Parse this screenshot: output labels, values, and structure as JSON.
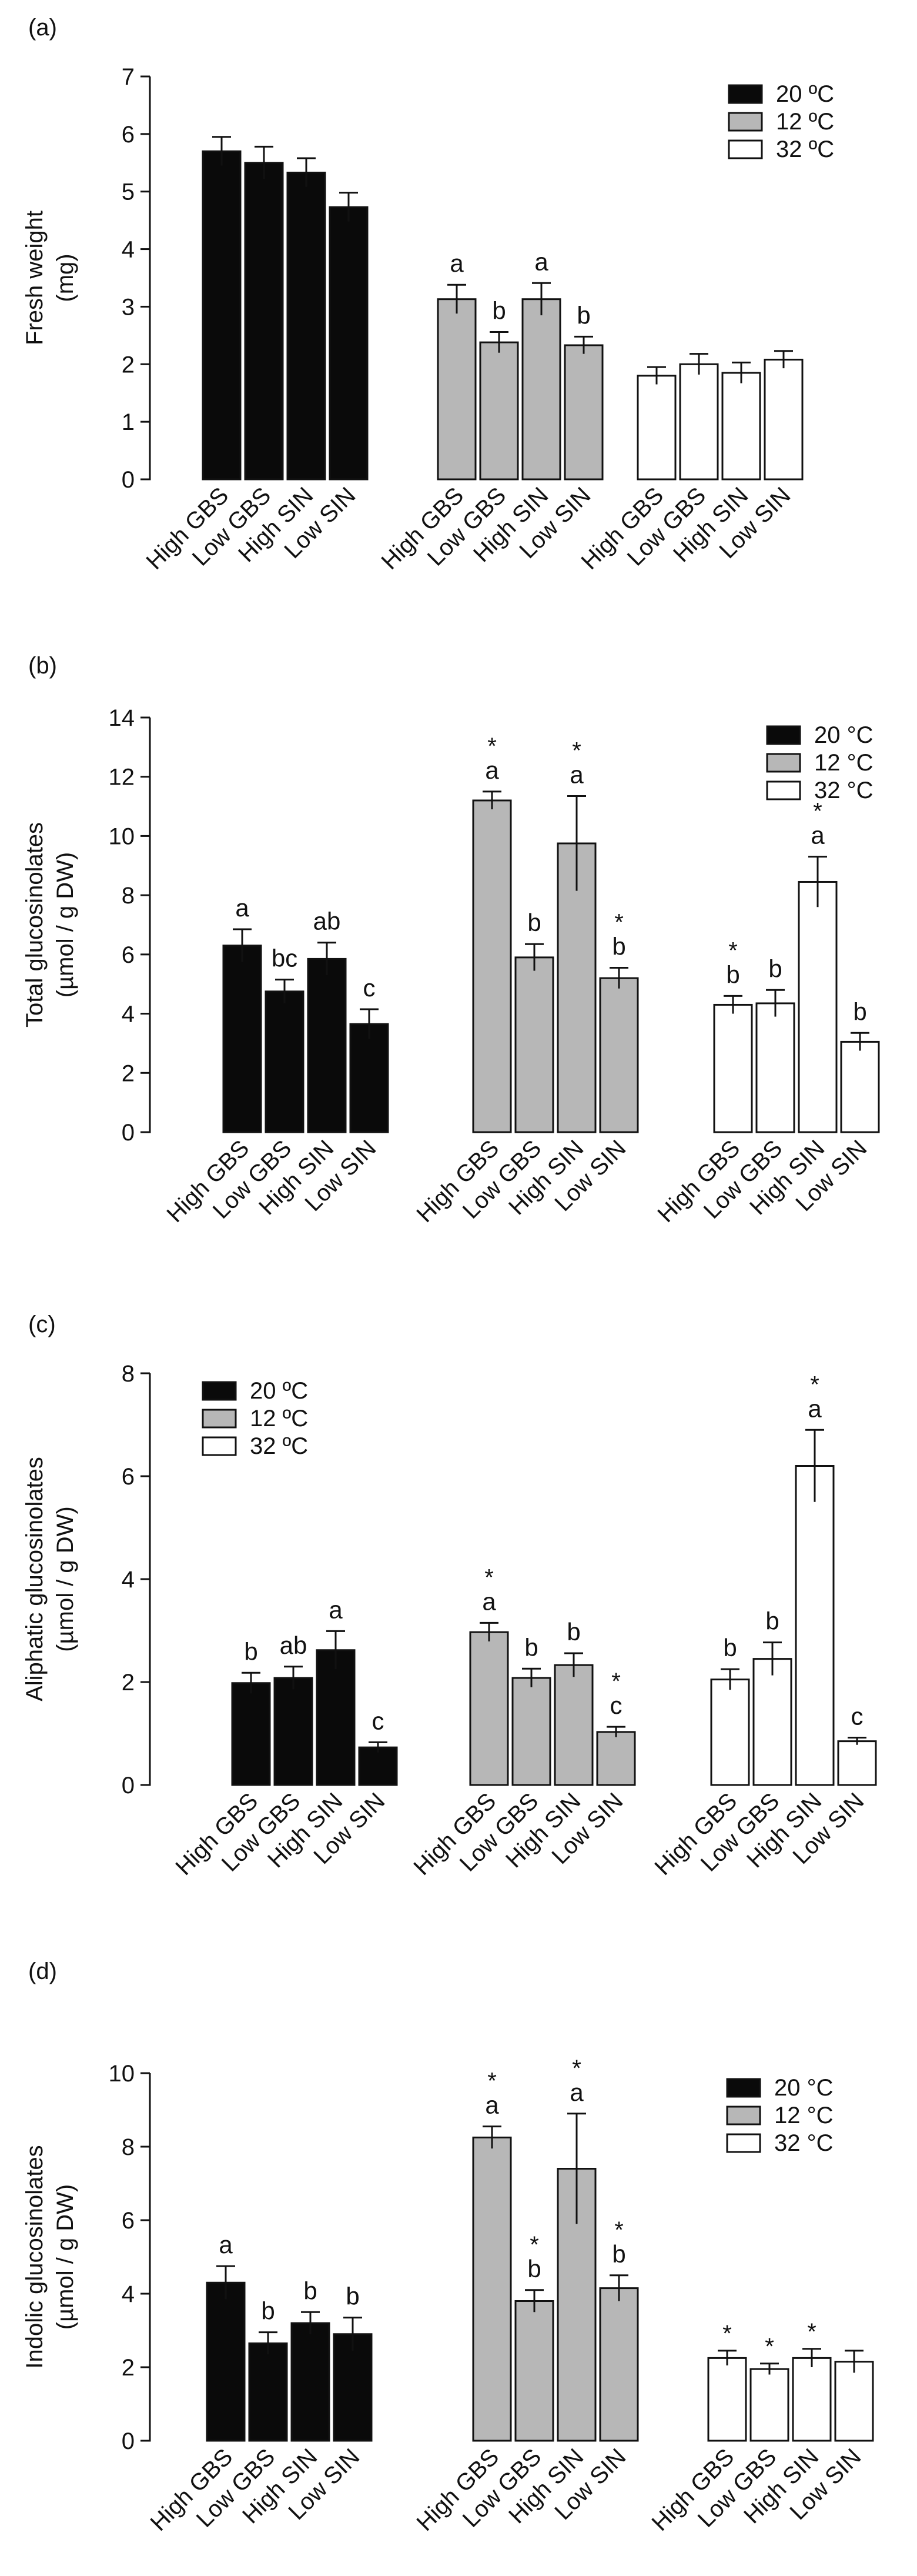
{
  "colors": {
    "20": "#0a0a0a",
    "12": "#b7b7b7",
    "32": "#ffffff"
  },
  "chart_data": [
    {
      "panel": "(a)",
      "type": "bar",
      "ylabel": "Fresh weight (mg)",
      "ylim": [
        0,
        7
      ],
      "yticks": [
        "0",
        "1",
        "2",
        "3",
        "4",
        "5",
        "6",
        "7"
      ],
      "legend": [
        "20 ºC",
        "12 ºC",
        "32 ºC"
      ],
      "legend_position": "top-right",
      "categories": [
        "High GBS",
        "Low GBS",
        "High SIN",
        "Low SIN"
      ],
      "groups": [
        {
          "name": "20 ºC",
          "values": [
            5.7,
            5.5,
            5.33,
            4.73
          ],
          "errors": [
            0.25,
            0.28,
            0.25,
            0.25
          ],
          "letters": [
            "",
            "",
            "",
            ""
          ],
          "stars": [
            "",
            "",
            "",
            ""
          ]
        },
        {
          "name": "12 ºC",
          "values": [
            3.13,
            2.38,
            3.13,
            2.33
          ],
          "errors": [
            0.25,
            0.18,
            0.28,
            0.15
          ],
          "letters": [
            "a",
            "b",
            "a",
            "b"
          ],
          "stars": [
            "",
            "",
            "",
            ""
          ]
        },
        {
          "name": "32 ºC",
          "values": [
            1.8,
            2.0,
            1.85,
            2.08
          ],
          "errors": [
            0.15,
            0.18,
            0.18,
            0.15
          ],
          "letters": [
            "",
            "",
            "",
            ""
          ],
          "stars": [
            "",
            "",
            "",
            ""
          ]
        }
      ]
    },
    {
      "panel": "(b)",
      "type": "bar",
      "ylabel": "Total glucosinolates (µmol / g DW)",
      "ylim": [
        0,
        14
      ],
      "yticks": [
        "0",
        "2",
        "4",
        "6",
        "8",
        "10",
        "12",
        "14"
      ],
      "legend": [
        "20 °C",
        "12 °C",
        "32 °C"
      ],
      "legend_position": "top-right",
      "categories": [
        "High GBS",
        "Low GBS",
        "High SIN",
        "Low SIN"
      ],
      "groups": [
        {
          "name": "20 °C",
          "values": [
            6.3,
            4.75,
            5.85,
            3.65
          ],
          "errors": [
            0.55,
            0.4,
            0.55,
            0.5
          ],
          "letters": [
            "a",
            "bc",
            "ab",
            "c"
          ],
          "stars": [
            "",
            "",
            "",
            ""
          ]
        },
        {
          "name": "12 °C",
          "values": [
            11.2,
            5.9,
            9.75,
            5.2
          ],
          "errors": [
            0.3,
            0.45,
            1.6,
            0.35
          ],
          "letters": [
            "a",
            "b",
            "a",
            "b"
          ],
          "stars": [
            "*",
            "",
            "*",
            "*"
          ]
        },
        {
          "name": "32 °C",
          "values": [
            4.3,
            4.35,
            8.45,
            3.05
          ],
          "errors": [
            0.3,
            0.45,
            0.85,
            0.3
          ],
          "letters": [
            "b",
            "b",
            "a",
            "b"
          ],
          "stars": [
            "*",
            "",
            "*",
            ""
          ]
        }
      ]
    },
    {
      "panel": "(c)",
      "type": "bar",
      "ylabel": "Aliphatic glucosinolates (µmol / g DW)",
      "ylim": [
        0,
        8
      ],
      "yticks": [
        "0",
        "2",
        "4",
        "6",
        "8"
      ],
      "legend": [
        "20 ºC",
        "12 ºC",
        "32 ºC"
      ],
      "legend_position": "top-left",
      "categories": [
        "High GBS",
        "Low GBS",
        "High SIN",
        "Low SIN"
      ],
      "groups": [
        {
          "name": "20 ºC",
          "values": [
            1.98,
            2.08,
            2.62,
            0.73
          ],
          "errors": [
            0.2,
            0.22,
            0.37,
            0.1
          ],
          "letters": [
            "b",
            "ab",
            "a",
            "c"
          ],
          "stars": [
            "",
            "",
            "",
            ""
          ]
        },
        {
          "name": "12 ºC",
          "values": [
            2.97,
            2.08,
            2.33,
            1.03
          ],
          "errors": [
            0.18,
            0.18,
            0.23,
            0.1
          ],
          "letters": [
            "a",
            "b",
            "b",
            "c"
          ],
          "stars": [
            "*",
            "",
            "",
            "*"
          ]
        },
        {
          "name": "32 ºC",
          "values": [
            2.05,
            2.45,
            6.2,
            0.85
          ],
          "errors": [
            0.2,
            0.32,
            0.7,
            0.07
          ],
          "letters": [
            "b",
            "b",
            "a",
            "c"
          ],
          "stars": [
            "",
            "",
            "*",
            ""
          ]
        }
      ]
    },
    {
      "panel": "(d)",
      "type": "bar",
      "ylabel": "Indolic glucosinolates (µmol / g DW)",
      "ylim": [
        0,
        10
      ],
      "yticks": [
        "0",
        "2",
        "4",
        "6",
        "8",
        "10"
      ],
      "legend": [
        "20 °C",
        "12 °C",
        "32 °C"
      ],
      "legend_position": "top-right",
      "categories": [
        "High GBS",
        "Low GBS",
        "High SIN",
        "Low SIN"
      ],
      "groups": [
        {
          "name": "20 °C",
          "values": [
            4.3,
            2.65,
            3.2,
            2.9
          ],
          "errors": [
            0.45,
            0.3,
            0.3,
            0.45
          ],
          "letters": [
            "a",
            "b",
            "b",
            "b"
          ],
          "stars": [
            "",
            "",
            "",
            ""
          ]
        },
        {
          "name": "12 °C",
          "values": [
            8.25,
            3.8,
            7.4,
            4.15
          ],
          "errors": [
            0.3,
            0.3,
            1.5,
            0.35
          ],
          "letters": [
            "a",
            "b",
            "a",
            "b"
          ],
          "stars": [
            "*",
            "*",
            "*",
            "*"
          ]
        },
        {
          "name": "32 °C",
          "values": [
            2.25,
            1.95,
            2.25,
            2.15
          ],
          "errors": [
            0.2,
            0.15,
            0.25,
            0.3
          ],
          "letters": [
            "",
            "",
            "",
            ""
          ],
          "stars": [
            "*",
            "*",
            "*",
            ""
          ]
        }
      ]
    }
  ]
}
